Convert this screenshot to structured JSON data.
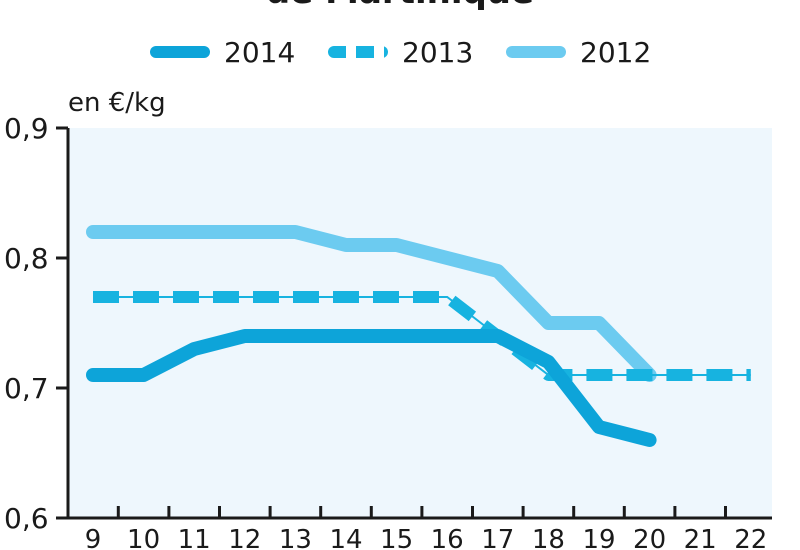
{
  "chart_data": {
    "type": "line",
    "title": "de Martinique",
    "ylabel": "en €/kg",
    "x": [
      9,
      10,
      11,
      12,
      13,
      14,
      15,
      16,
      17,
      18,
      19,
      20,
      21,
      22
    ],
    "xlim": [
      9,
      22
    ],
    "ylim": [
      0.6,
      0.9
    ],
    "yticks": [
      "0,6",
      "0,7",
      "0,8",
      "0,9"
    ],
    "grid": false,
    "legend_position": "top",
    "series": [
      {
        "name": "2014",
        "style": "solid",
        "color": "#0da4d9",
        "x": [
          9,
          10,
          11,
          12,
          13,
          14,
          15,
          16,
          17,
          18,
          19,
          20
        ],
        "values": [
          0.71,
          0.71,
          0.73,
          0.74,
          0.74,
          0.74,
          0.74,
          0.74,
          0.74,
          0.72,
          0.67,
          0.66
        ]
      },
      {
        "name": "2013",
        "style": "dashed",
        "color": "#17b3e0",
        "x": [
          9,
          10,
          11,
          12,
          13,
          14,
          15,
          16,
          17,
          18,
          19,
          20,
          21,
          22
        ],
        "values": [
          0.77,
          0.77,
          0.77,
          0.77,
          0.77,
          0.77,
          0.77,
          0.77,
          0.74,
          0.71,
          0.71,
          0.71,
          0.71,
          0.71
        ]
      },
      {
        "name": "2012",
        "style": "solid",
        "color": "#6ccbf0",
        "x": [
          9,
          10,
          11,
          12,
          13,
          14,
          15,
          16,
          17,
          18,
          19,
          20
        ],
        "values": [
          0.82,
          0.82,
          0.82,
          0.82,
          0.82,
          0.81,
          0.81,
          0.8,
          0.79,
          0.75,
          0.75,
          0.71
        ]
      }
    ],
    "colors": {
      "plot_background": "#eef7fd",
      "axis": "#1a1a1a"
    }
  }
}
